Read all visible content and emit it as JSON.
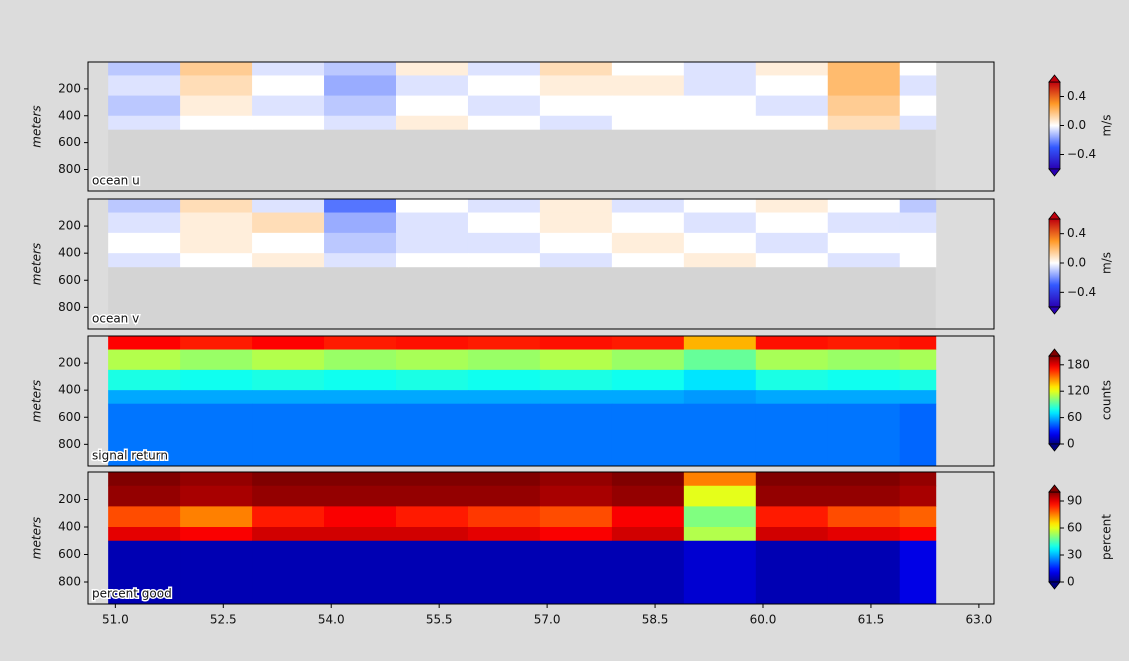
{
  "chart_data": [
    {
      "type": "heatmap",
      "label": "ocean u",
      "ylabel": "meters",
      "colorbar_label": "m/s",
      "colormap": "diverging",
      "xlim": [
        50.62,
        63.21
      ],
      "ylim": [
        0,
        960
      ],
      "invert_y": true,
      "yticks": [
        200,
        400,
        600,
        800
      ],
      "clim": [
        -0.6,
        0.6
      ],
      "cticks": [
        {
          "value": -0.4,
          "label": "−0.4"
        },
        {
          "value": 0,
          "label": "0.0"
        },
        {
          "value": 0.4,
          "label": "0.4"
        }
      ],
      "x_edges": [
        50.9,
        51.9,
        52.9,
        53.9,
        54.9,
        55.9,
        56.9,
        57.9,
        58.9,
        59.9,
        60.9,
        61.9,
        62.4
      ],
      "depth_edges": [
        0,
        100,
        250,
        400,
        500
      ],
      "values": [
        [
          -0.1,
          0.15,
          -0.05,
          -0.1,
          0.05,
          -0.05,
          0.1,
          0,
          -0.05,
          0.05,
          0.2,
          0
        ],
        [
          -0.05,
          0.1,
          0,
          -0.15,
          -0.05,
          0,
          0.05,
          0.05,
          -0.05,
          0,
          0.2,
          -0.05
        ],
        [
          -0.1,
          0.05,
          -0.05,
          -0.1,
          0,
          -0.05,
          0,
          0,
          0,
          -0.05,
          0.15,
          0
        ],
        [
          -0.05,
          0,
          0,
          -0.05,
          0.05,
          0,
          -0.05,
          0,
          0,
          0,
          0.1,
          -0.05
        ]
      ]
    },
    {
      "type": "heatmap",
      "label": "ocean v",
      "ylabel": "meters",
      "colorbar_label": "m/s",
      "colormap": "diverging",
      "xlim": [
        50.62,
        63.21
      ],
      "ylim": [
        0,
        960
      ],
      "invert_y": true,
      "yticks": [
        200,
        400,
        600,
        800
      ],
      "clim": [
        -0.6,
        0.6
      ],
      "cticks": [
        {
          "value": -0.4,
          "label": "−0.4"
        },
        {
          "value": 0,
          "label": "0.0"
        },
        {
          "value": 0.4,
          "label": "0.4"
        }
      ],
      "x_edges": [
        50.9,
        51.9,
        52.9,
        53.9,
        54.9,
        55.9,
        56.9,
        57.9,
        58.9,
        59.9,
        60.9,
        61.9,
        62.4
      ],
      "depth_edges": [
        0,
        100,
        250,
        400,
        500
      ],
      "values": [
        [
          -0.1,
          0.1,
          -0.05,
          -0.25,
          0,
          -0.05,
          0.05,
          -0.05,
          0,
          0.05,
          0,
          -0.1
        ],
        [
          -0.05,
          0.05,
          0.1,
          -0.15,
          -0.05,
          0,
          0.05,
          0,
          -0.05,
          0,
          -0.05,
          -0.05
        ],
        [
          0,
          0.05,
          0,
          -0.1,
          -0.05,
          -0.05,
          0,
          0.05,
          0,
          -0.05,
          0,
          0
        ],
        [
          -0.05,
          0,
          0.05,
          -0.05,
          0,
          0,
          -0.05,
          0,
          0.05,
          0,
          -0.05,
          0
        ]
      ]
    },
    {
      "type": "heatmap",
      "label": "signal return",
      "ylabel": "meters",
      "colorbar_label": "counts",
      "colormap": "jet",
      "xlim": [
        50.62,
        63.21
      ],
      "ylim": [
        0,
        960
      ],
      "invert_y": true,
      "yticks": [
        200,
        400,
        600,
        800
      ],
      "clim": [
        0,
        200
      ],
      "cticks": [
        0,
        60,
        120,
        180
      ],
      "x_edges": [
        50.9,
        51.9,
        52.9,
        53.9,
        54.9,
        55.9,
        56.9,
        57.9,
        58.9,
        59.9,
        60.9,
        61.9,
        62.4
      ],
      "depth_edges": [
        0,
        100,
        250,
        400,
        500,
        960
      ],
      "values": [
        [
          175,
          170,
          175,
          170,
          172,
          170,
          172,
          170,
          140,
          172,
          170,
          172
        ],
        [
          110,
          105,
          110,
          105,
          108,
          105,
          110,
          105,
          95,
          108,
          105,
          108
        ],
        [
          80,
          78,
          80,
          78,
          80,
          78,
          80,
          78,
          70,
          80,
          78,
          80
        ],
        [
          58,
          58,
          58,
          58,
          58,
          58,
          58,
          58,
          55,
          58,
          58,
          58
        ],
        [
          48,
          48,
          48,
          48,
          48,
          48,
          48,
          48,
          48,
          48,
          48,
          45
        ]
      ]
    },
    {
      "type": "heatmap",
      "label": "percent good",
      "ylabel": "meters",
      "colorbar_label": "percent",
      "colormap": "jet",
      "xlim": [
        50.62,
        63.21
      ],
      "ylim": [
        0,
        960
      ],
      "invert_y": true,
      "yticks": [
        200,
        400,
        600,
        800
      ],
      "xticks": [
        {
          "value": 51,
          "label": "51.0"
        },
        {
          "value": 52.5,
          "label": "52.5"
        },
        {
          "value": 54,
          "label": "54.0"
        },
        {
          "value": 55.5,
          "label": "55.5"
        },
        {
          "value": 57,
          "label": "57.0"
        },
        {
          "value": 58.5,
          "label": "58.5"
        },
        {
          "value": 60,
          "label": "60.0"
        },
        {
          "value": 61.5,
          "label": "61.5"
        },
        {
          "value": 63,
          "label": "63.0"
        }
      ],
      "clim": [
        0,
        100
      ],
      "cticks": [
        0,
        30,
        60,
        90
      ],
      "x_edges": [
        50.9,
        51.9,
        52.9,
        53.9,
        54.9,
        55.9,
        56.9,
        57.9,
        58.9,
        59.9,
        60.9,
        61.9,
        62.4
      ],
      "depth_edges": [
        0,
        100,
        250,
        400,
        500,
        960
      ],
      "values": [
        [
          100,
          98,
          100,
          100,
          100,
          100,
          98,
          100,
          75,
          100,
          100,
          98
        ],
        [
          98,
          96,
          98,
          98,
          98,
          98,
          96,
          98,
          60,
          98,
          98,
          96
        ],
        [
          80,
          75,
          85,
          88,
          85,
          82,
          80,
          88,
          50,
          85,
          80,
          78
        ],
        [
          90,
          88,
          92,
          92,
          92,
          90,
          88,
          92,
          55,
          92,
          90,
          88
        ],
        [
          5,
          5,
          5,
          5,
          5,
          5,
          5,
          5,
          8,
          5,
          5,
          10
        ]
      ]
    }
  ]
}
